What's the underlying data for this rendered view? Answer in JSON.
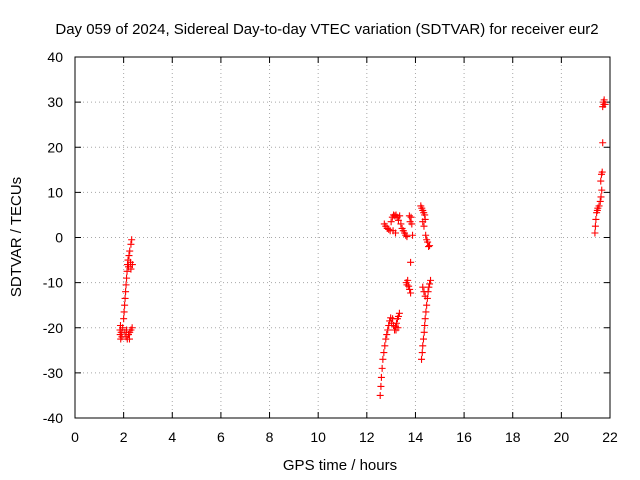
{
  "chart_data": {
    "type": "scatter",
    "title": "Day 059 of 2024, Sidereal Day-to-day VTEC variation (SDTVAR) for receiver eur2",
    "xlabel": "GPS time / hours",
    "ylabel": "SDTVAR / TECUs",
    "xlim": [
      0,
      22
    ],
    "ylim": [
      -40,
      40
    ],
    "xticks": [
      0,
      2,
      4,
      6,
      8,
      10,
      12,
      14,
      16,
      18,
      20,
      22
    ],
    "yticks": [
      -40,
      -30,
      -20,
      -10,
      0,
      10,
      20,
      30,
      40
    ],
    "grid": true,
    "marker": "+",
    "series_color": "#ff0000",
    "series": [
      {
        "name": "SDTVAR",
        "points": [
          [
            1.88,
            -22.5
          ],
          [
            1.86,
            -21.5
          ],
          [
            1.85,
            -20.5
          ],
          [
            1.87,
            -19.5
          ],
          [
            1.9,
            -21.0
          ],
          [
            1.93,
            -22.0
          ],
          [
            1.96,
            -20.0
          ],
          [
            2.0,
            -18.0
          ],
          [
            2.02,
            -16.5
          ],
          [
            2.04,
            -15.0
          ],
          [
            2.06,
            -13.5
          ],
          [
            2.08,
            -12.0
          ],
          [
            2.1,
            -10.5
          ],
          [
            2.12,
            -9.0
          ],
          [
            2.14,
            -7.5
          ],
          [
            2.16,
            -6.0
          ],
          [
            2.18,
            -5.0
          ],
          [
            2.2,
            -6.5
          ],
          [
            2.22,
            -4.0
          ],
          [
            2.25,
            -3.0
          ],
          [
            2.28,
            -5.5
          ],
          [
            2.3,
            -1.5
          ],
          [
            2.33,
            -0.5
          ],
          [
            2.36,
            -6.0
          ],
          [
            2.3,
            -7.0
          ],
          [
            2.05,
            -21.0
          ],
          [
            2.1,
            -22.0
          ],
          [
            2.15,
            -22.5
          ],
          [
            2.2,
            -21.5
          ],
          [
            2.25,
            -21.0
          ],
          [
            2.3,
            -20.5
          ],
          [
            2.35,
            -20.0
          ],
          [
            2.12,
            -20.5
          ],
          [
            2.24,
            -22.5
          ],
          [
            12.55,
            -35.0
          ],
          [
            12.58,
            -33.0
          ],
          [
            12.6,
            -31.0
          ],
          [
            12.63,
            -29.0
          ],
          [
            12.66,
            -27.0
          ],
          [
            12.7,
            -25.5
          ],
          [
            12.74,
            -24.0
          ],
          [
            12.78,
            -22.5
          ],
          [
            12.82,
            -21.5
          ],
          [
            12.86,
            -20.5
          ],
          [
            12.9,
            -19.5
          ],
          [
            12.94,
            -18.5
          ],
          [
            12.98,
            -17.8
          ],
          [
            13.02,
            -19.0
          ],
          [
            13.06,
            -18.0
          ],
          [
            13.1,
            -19.5
          ],
          [
            13.14,
            -20.5
          ],
          [
            13.18,
            -19.8
          ],
          [
            13.22,
            -19.0
          ],
          [
            13.26,
            -18.0
          ],
          [
            13.3,
            -17.5
          ],
          [
            13.34,
            -16.8
          ],
          [
            13.2,
            -20.5
          ],
          [
            13.28,
            -20.0
          ],
          [
            12.72,
            3.0
          ],
          [
            12.78,
            2.5
          ],
          [
            12.84,
            2.0
          ],
          [
            12.9,
            1.8
          ],
          [
            12.96,
            1.5
          ],
          [
            13.0,
            3.5
          ],
          [
            13.05,
            4.5
          ],
          [
            13.1,
            5.0
          ],
          [
            13.15,
            4.8
          ],
          [
            13.2,
            5.0
          ],
          [
            13.25,
            4.5
          ],
          [
            13.3,
            3.8
          ],
          [
            13.35,
            4.8
          ],
          [
            13.4,
            3.0
          ],
          [
            13.45,
            2.0
          ],
          [
            13.5,
            1.5
          ],
          [
            13.55,
            1.0
          ],
          [
            13.6,
            0.5
          ],
          [
            13.65,
            0.2
          ],
          [
            13.18,
            1.0
          ],
          [
            13.08,
            1.5
          ],
          [
            13.62,
            -10.0
          ],
          [
            13.65,
            -10.5
          ],
          [
            13.68,
            -9.5
          ],
          [
            13.72,
            -10.8
          ],
          [
            13.76,
            -11.5
          ],
          [
            13.8,
            -12.3
          ],
          [
            13.75,
            4.8
          ],
          [
            13.78,
            3.5
          ],
          [
            13.82,
            4.5
          ],
          [
            13.85,
            3.0
          ],
          [
            13.88,
            0.5
          ],
          [
            13.8,
            -5.5
          ],
          [
            14.22,
            7.0
          ],
          [
            14.26,
            6.5
          ],
          [
            14.3,
            6.0
          ],
          [
            14.34,
            5.5
          ],
          [
            14.38,
            5.0
          ],
          [
            14.3,
            3.5
          ],
          [
            14.35,
            2.5
          ],
          [
            14.4,
            4.0
          ],
          [
            14.42,
            0.5
          ],
          [
            14.46,
            -0.5
          ],
          [
            14.5,
            -1.0
          ],
          [
            14.54,
            -2.0
          ],
          [
            14.58,
            -1.8
          ],
          [
            14.25,
            -27.0
          ],
          [
            14.28,
            -25.5
          ],
          [
            14.3,
            -24.0
          ],
          [
            14.33,
            -22.5
          ],
          [
            14.36,
            -21.0
          ],
          [
            14.38,
            -19.5
          ],
          [
            14.4,
            -18.0
          ],
          [
            14.43,
            -16.5
          ],
          [
            14.46,
            -15.0
          ],
          [
            14.49,
            -13.5
          ],
          [
            14.52,
            -12.0
          ],
          [
            14.55,
            -11.0
          ],
          [
            14.58,
            -10.3
          ],
          [
            14.62,
            -9.5
          ],
          [
            14.3,
            -11.0
          ],
          [
            14.35,
            -12.0
          ],
          [
            14.4,
            -13.0
          ],
          [
            21.38,
            1.0
          ],
          [
            21.4,
            2.5
          ],
          [
            21.42,
            4.0
          ],
          [
            21.45,
            5.5
          ],
          [
            21.48,
            6.0
          ],
          [
            21.5,
            6.5
          ],
          [
            21.55,
            7.0
          ],
          [
            21.6,
            8.0
          ],
          [
            21.63,
            9.0
          ],
          [
            21.66,
            10.5
          ],
          [
            21.62,
            12.5
          ],
          [
            21.65,
            14.0
          ],
          [
            21.68,
            14.5
          ],
          [
            21.7,
            21.0
          ],
          [
            21.7,
            29.0
          ],
          [
            21.73,
            30.0
          ],
          [
            21.76,
            30.5
          ],
          [
            21.8,
            29.5
          ],
          [
            21.75,
            29.5
          ]
        ]
      }
    ]
  }
}
